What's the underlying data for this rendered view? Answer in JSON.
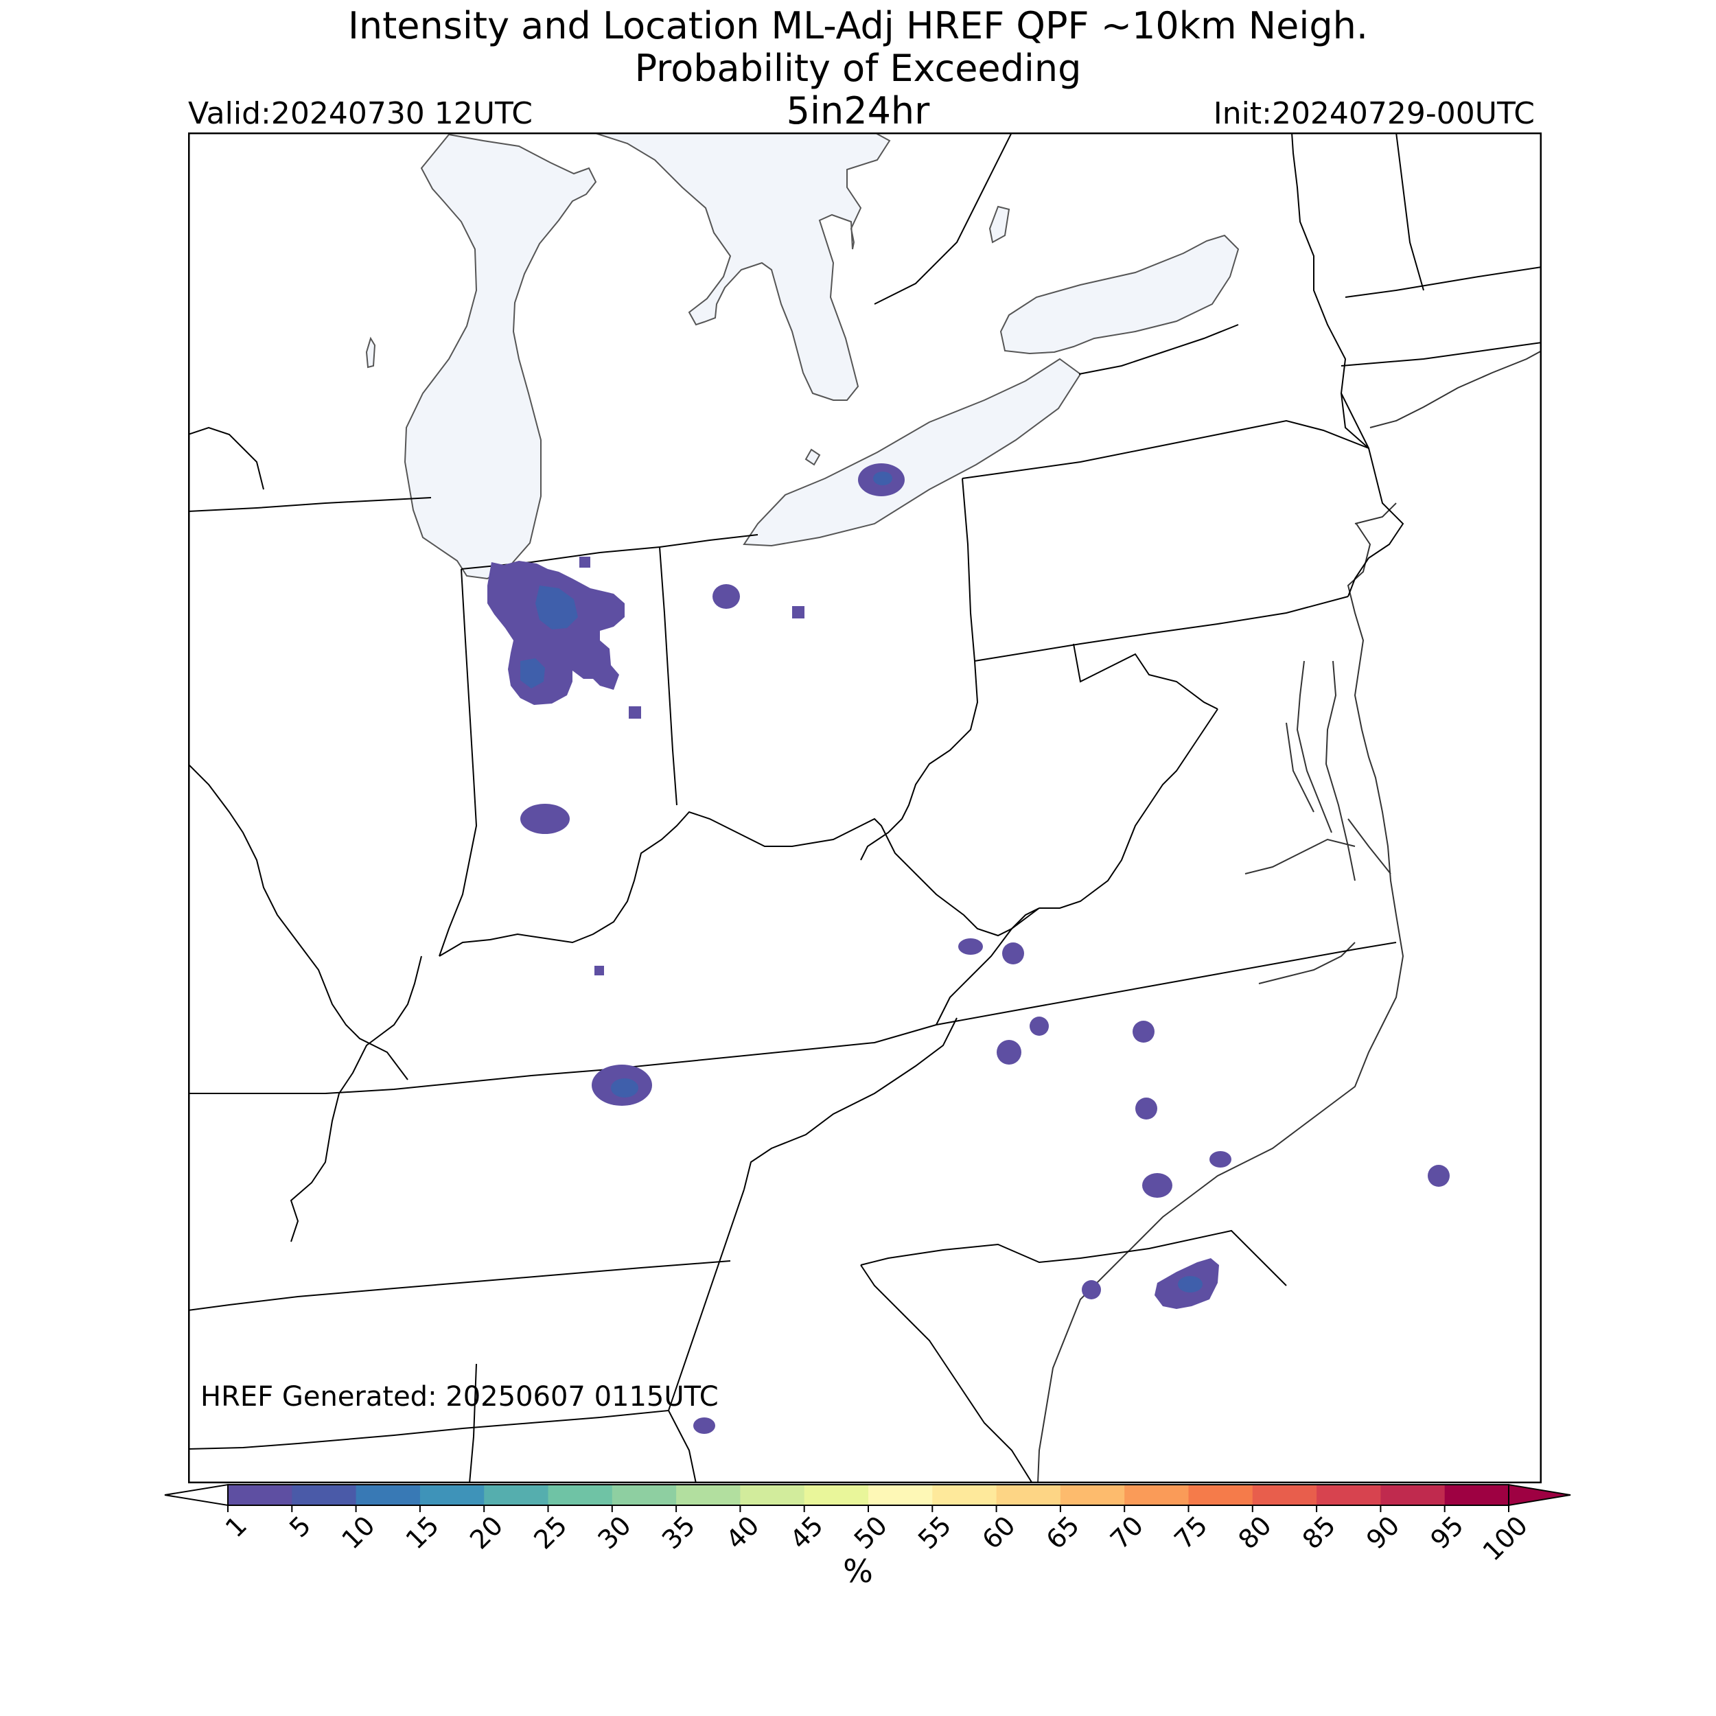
{
  "header": {
    "title_line1": "Intensity and Location ML-Adj HREF QPF ~10km Neigh.",
    "title_line2": "Probability of Exceeding",
    "title_line3": "5in24hr",
    "valid": "Valid:20240730 12UTC",
    "init": "Init:20240729-00UTC"
  },
  "map": {
    "generated": "HREF Generated: 20250607 0115UTC",
    "water_color": "#f2f5fa",
    "probability_color_low": "#5e4fa2",
    "probability_color_mid": "#3f5fab",
    "boundary_color": "#000000"
  },
  "colorbar": {
    "ticks": [
      "1",
      "5",
      "10",
      "15",
      "20",
      "25",
      "30",
      "35",
      "40",
      "45",
      "50",
      "55",
      "60",
      "65",
      "70",
      "75",
      "80",
      "85",
      "90",
      "95",
      "100"
    ],
    "colors": [
      "#5e4fa2",
      "#4a5aa8",
      "#3879b5",
      "#3e93b9",
      "#55aeae",
      "#6fc3a5",
      "#8ecfa1",
      "#b2df9f",
      "#d2ec9c",
      "#e9f69a",
      "#fef8b6",
      "#fee99b",
      "#fdd585",
      "#fdbb6d",
      "#fa9b58",
      "#f57b4a",
      "#e85e4c",
      "#d7434f",
      "#c02a4e",
      "#9e0142"
    ],
    "unit": "%"
  }
}
